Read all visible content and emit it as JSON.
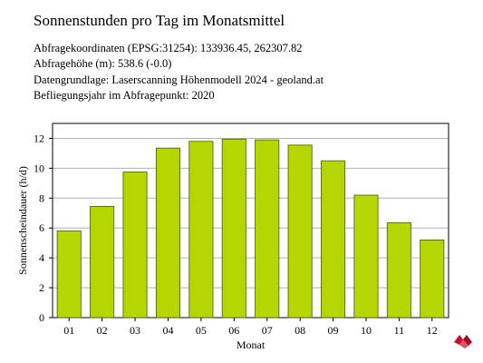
{
  "title": "Sonnenstunden pro Tag im Monatsmittel",
  "info": [
    "Abfragekoordinaten (EPSG:31254): 133936.45, 262307.82",
    "Abfragehöhe (m): 538.6 (-0.0)",
    "Datengrundlage: Laserscanning Höhenmodell 2024 - geoland.at",
    "Befliegungsjahr im Abfragepunkt: 2020"
  ],
  "logo_icon": "geoland-logo-icon",
  "chart_data": {
    "type": "bar",
    "categories": [
      "01",
      "02",
      "03",
      "04",
      "05",
      "06",
      "07",
      "08",
      "09",
      "10",
      "11",
      "12"
    ],
    "values": [
      5.8,
      7.45,
      9.75,
      11.35,
      11.8,
      11.95,
      11.9,
      11.55,
      10.5,
      8.2,
      6.35,
      5.2
    ],
    "xlabel": "Monat",
    "ylabel": "Sonnenscheindauer (h/d)",
    "ylim": [
      0,
      13
    ],
    "yticks": [
      0,
      2,
      4,
      6,
      8,
      10,
      12
    ],
    "grid": true,
    "bar_color": "#b5d600",
    "bar_edge_color": "#4a5a00",
    "grid_color": "#b0b0b0"
  }
}
